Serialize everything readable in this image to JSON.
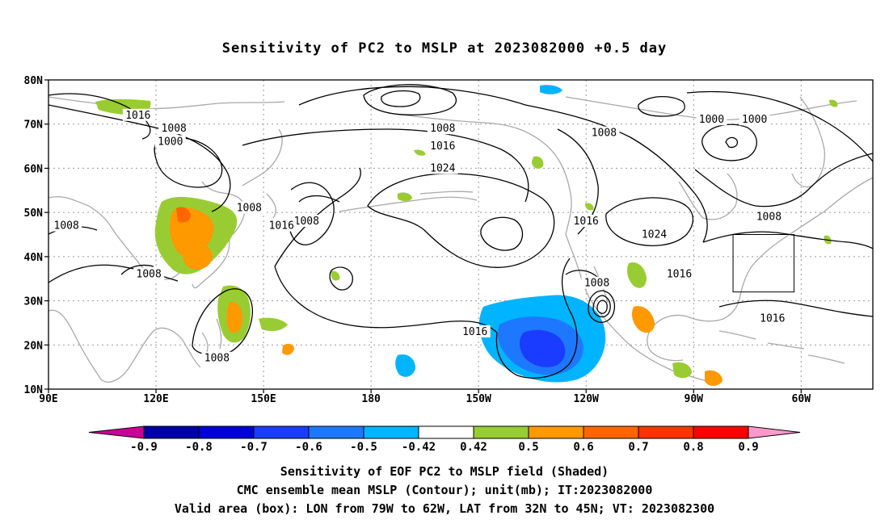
{
  "title": "Sensitivity of PC2 to MSLP at 2023082000 +0.5 day",
  "map": {
    "lat_labels": [
      "80N",
      "70N",
      "60N",
      "50N",
      "40N",
      "30N",
      "20N",
      "10N"
    ],
    "lon_labels": [
      "90E",
      "120E",
      "150E",
      "180",
      "150W",
      "120W",
      "90W",
      "60W"
    ],
    "extent": {
      "lon_min_east": 90,
      "lon_max_east": 320,
      "lat_min": 10,
      "lat_max": 80
    },
    "contour_labels": [
      {
        "text": "1016",
        "lon": 115,
        "lat": 72
      },
      {
        "text": "1008",
        "lon": 125,
        "lat": 69
      },
      {
        "text": "1000",
        "lon": 124,
        "lat": 66
      },
      {
        "text": "1008",
        "lon": 200,
        "lat": 69
      },
      {
        "text": "1008",
        "lon": 245,
        "lat": 68
      },
      {
        "text": "1016",
        "lon": 200,
        "lat": 65
      },
      {
        "text": "1024",
        "lon": 200,
        "lat": 60
      },
      {
        "text": "1000",
        "lon": 275,
        "lat": 71
      },
      {
        "text": "1000",
        "lon": 287,
        "lat": 71
      },
      {
        "text": "1008",
        "lon": 146,
        "lat": 51
      },
      {
        "text": "1008",
        "lon": 162,
        "lat": 48
      },
      {
        "text": "1016",
        "lon": 155,
        "lat": 47
      },
      {
        "text": "1008",
        "lon": 95,
        "lat": 47
      },
      {
        "text": "1008",
        "lon": 118,
        "lat": 36
      },
      {
        "text": "1016",
        "lon": 240,
        "lat": 48
      },
      {
        "text": "1024",
        "lon": 259,
        "lat": 45
      },
      {
        "text": "1008",
        "lon": 291,
        "lat": 49
      },
      {
        "text": "1016",
        "lon": 266,
        "lat": 36
      },
      {
        "text": "1008",
        "lon": 243,
        "lat": 34
      },
      {
        "text": "1016",
        "lon": 209,
        "lat": 23
      },
      {
        "text": "1008",
        "lon": 137,
        "lat": 17
      },
      {
        "text": "1016",
        "lon": 292,
        "lat": 26
      }
    ],
    "valid_box": {
      "lon_west": 79,
      "lon_east": 62,
      "lat_south": 32,
      "lat_north": 45
    }
  },
  "colorbar": {
    "levels": [
      "-0.9",
      "-0.8",
      "-0.7",
      "-0.6",
      "-0.5",
      "-0.42",
      "0.42",
      "0.5",
      "0.6",
      "0.7",
      "0.8",
      "0.9"
    ],
    "colors": [
      "#0000a6",
      "#0000d6",
      "#1a3cff",
      "#1e78ff",
      "#00b4ff",
      "#ffffff",
      "#99cc33",
      "#ff9900",
      "#ff6600",
      "#ff3300",
      "#ff0000"
    ],
    "low_end_color": "#cc0099",
    "high_end_color": "#ff99cc"
  },
  "caption": {
    "line1": "Sensitivity of EOF PC2 to MSLP field (Shaded)",
    "line2": "CMC ensemble mean MSLP (Contour); unit(mb); IT:2023082000",
    "line3": "Valid area (box): LON from 79W to 62W, LAT from 32N to 45N; VT: 2023082300"
  }
}
